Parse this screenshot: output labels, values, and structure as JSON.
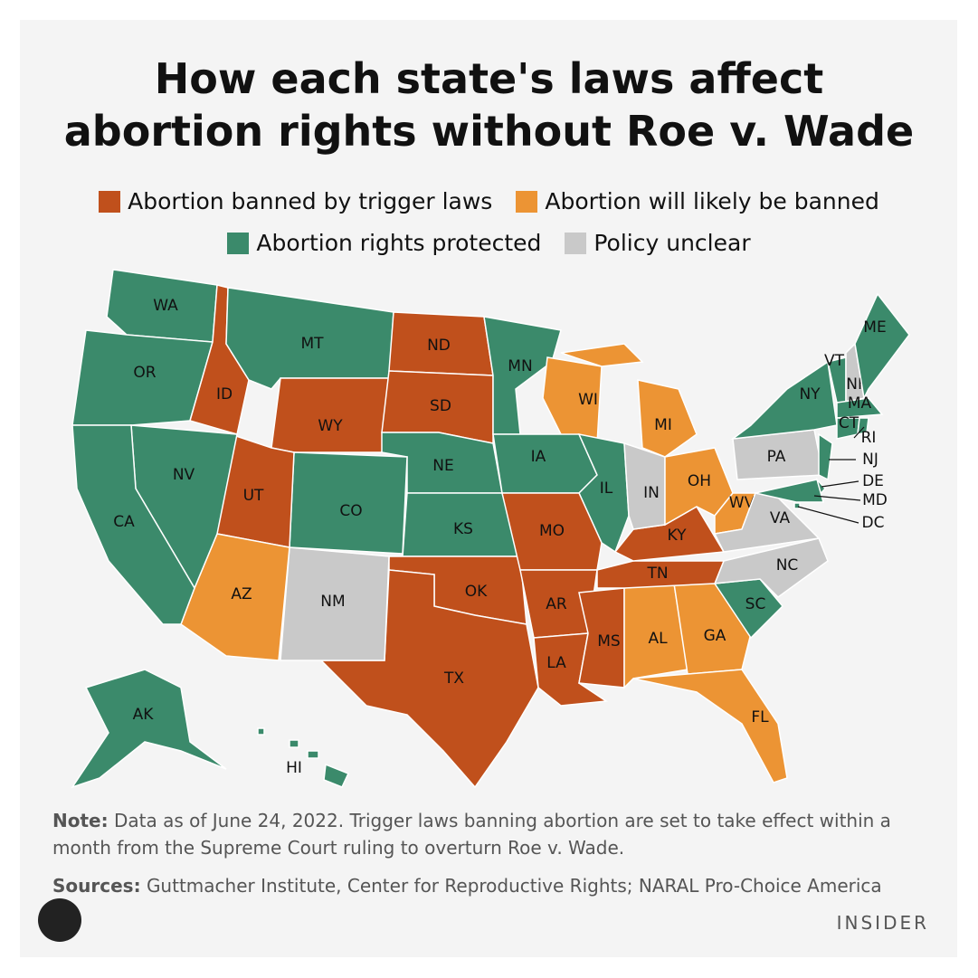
{
  "header": {
    "title": [
      "How each state's laws affect",
      "abortion rights without Roe v. Wade"
    ]
  },
  "legend": [
    {
      "label": "Abortion banned by trigger laws",
      "color": "#c0501c"
    },
    {
      "label": "Abortion will likely be banned",
      "color": "#ec9434"
    },
    {
      "label": "Abortion rights protected",
      "color": "#3b8a6b"
    },
    {
      "label": "Policy unclear",
      "color": "#c9c9c9"
    }
  ],
  "states": [
    {
      "label": "WA",
      "status": 2
    },
    {
      "label": "OR",
      "status": 2
    },
    {
      "label": "ID",
      "status": 0
    },
    {
      "label": "MT",
      "status": 2
    },
    {
      "label": "WY",
      "status": 0
    },
    {
      "label": "ND",
      "status": 0
    },
    {
      "label": "SD",
      "status": 0
    },
    {
      "label": "NE",
      "status": 2
    },
    {
      "label": "KS",
      "status": 2
    },
    {
      "label": "OK",
      "status": 0
    },
    {
      "label": "TX",
      "status": 0
    },
    {
      "label": "NM",
      "status": 3
    },
    {
      "label": "CO",
      "status": 2
    },
    {
      "label": "UT",
      "status": 0
    },
    {
      "label": "AZ",
      "status": 1
    },
    {
      "label": "NV",
      "status": 2
    },
    {
      "label": "CA",
      "status": 2
    },
    {
      "label": "MN",
      "status": 2
    },
    {
      "label": "WI",
      "status": 1
    },
    {
      "label": "IA",
      "status": 2
    },
    {
      "label": "IL",
      "status": 2
    },
    {
      "label": "MO",
      "status": 0
    },
    {
      "label": "AR",
      "status": 0
    },
    {
      "label": "LA",
      "status": 0
    },
    {
      "label": "MS",
      "status": 0
    },
    {
      "label": "AL",
      "status": 1
    },
    {
      "label": "GA",
      "status": 1
    },
    {
      "label": "FL",
      "status": 1
    },
    {
      "label": "SC",
      "status": 2
    },
    {
      "label": "NC",
      "status": 3
    },
    {
      "label": "TN",
      "status": 0
    },
    {
      "label": "KY",
      "status": 0
    },
    {
      "label": "IN",
      "status": 3
    },
    {
      "label": "OH",
      "status": 1
    },
    {
      "label": "MI",
      "status": 1
    },
    {
      "label": "WV",
      "status": 1
    },
    {
      "label": "VA",
      "status": 3
    },
    {
      "label": "PA",
      "status": 3
    },
    {
      "label": "NY",
      "status": 2
    },
    {
      "label": "NJ",
      "status": 2
    },
    {
      "label": "DE",
      "status": 2
    },
    {
      "label": "MD",
      "status": 2
    },
    {
      "label": "DC",
      "status": 2
    },
    {
      "label": "VT",
      "status": 2
    },
    {
      "label": "NH",
      "status": 3
    },
    {
      "label": "ME",
      "status": 2
    },
    {
      "label": "MA",
      "status": 2
    },
    {
      "label": "CT",
      "status": 2
    },
    {
      "label": "RI",
      "status": 2
    },
    {
      "label": "AK",
      "status": 2
    },
    {
      "label": "HI",
      "status": 2
    }
  ],
  "note": {
    "label": "Note:",
    "text": "Data as of June 24, 2022. Trigger laws banning abortion are set to take effect within a month from the Supreme Court ruling to overturn Roe v. Wade."
  },
  "sources": {
    "label": "Sources:",
    "text": "Guttmacher Institute, Center for Reproductive Rights; NARAL Pro-Choice America"
  },
  "brand": "INSIDER"
}
